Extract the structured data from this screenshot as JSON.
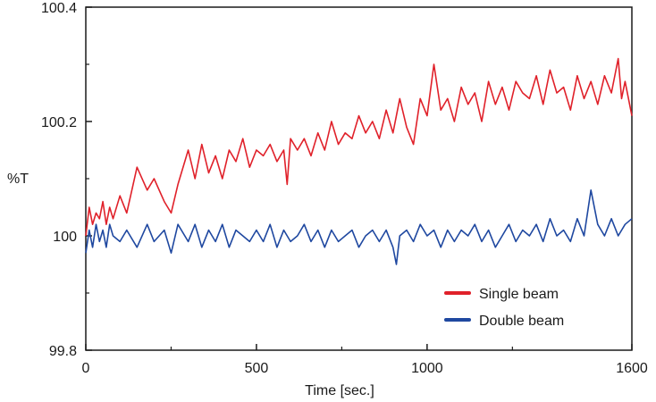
{
  "chart_data": {
    "type": "line",
    "title": "",
    "xlabel": "Time [sec.]",
    "ylabel": "%T",
    "xlim": [
      0,
      1600
    ],
    "ylim": [
      99.8,
      100.4
    ],
    "x_ticks": [
      0,
      500,
      1000,
      1600
    ],
    "x_tick_labels": [
      "0",
      "500",
      "1000",
      "1600"
    ],
    "x_minor_ticks": [
      250,
      750,
      1250
    ],
    "y_ticks": [
      99.8,
      100,
      100.2,
      100.4
    ],
    "y_tick_labels": [
      "99.8",
      "100",
      "100.2",
      "100.4"
    ],
    "y_minor_ticks": [
      99.9,
      100.1,
      100.3
    ],
    "grid": false,
    "legend_position": "bottom-right",
    "series": [
      {
        "name": "Single beam",
        "color": "#e0212a",
        "x": [
          0,
          10,
          20,
          30,
          40,
          50,
          60,
          70,
          80,
          100,
          120,
          150,
          180,
          200,
          230,
          250,
          270,
          300,
          320,
          340,
          360,
          380,
          400,
          420,
          440,
          460,
          480,
          500,
          520,
          540,
          560,
          580,
          590,
          600,
          620,
          640,
          660,
          680,
          700,
          720,
          740,
          760,
          780,
          800,
          820,
          840,
          860,
          880,
          900,
          920,
          940,
          960,
          980,
          1000,
          1020,
          1040,
          1060,
          1080,
          1100,
          1120,
          1140,
          1160,
          1180,
          1200,
          1220,
          1240,
          1260,
          1280,
          1300,
          1320,
          1340,
          1360,
          1380,
          1400,
          1420,
          1440,
          1460,
          1480,
          1500,
          1520,
          1540,
          1560,
          1570,
          1580,
          1600
        ],
        "y": [
          100.0,
          100.05,
          100.02,
          100.04,
          100.03,
          100.06,
          100.02,
          100.05,
          100.03,
          100.07,
          100.04,
          100.12,
          100.08,
          100.1,
          100.06,
          100.04,
          100.09,
          100.15,
          100.1,
          100.16,
          100.11,
          100.14,
          100.1,
          100.15,
          100.13,
          100.17,
          100.12,
          100.15,
          100.14,
          100.16,
          100.13,
          100.15,
          100.09,
          100.17,
          100.15,
          100.17,
          100.14,
          100.18,
          100.15,
          100.2,
          100.16,
          100.18,
          100.17,
          100.21,
          100.18,
          100.2,
          100.17,
          100.22,
          100.18,
          100.24,
          100.19,
          100.16,
          100.24,
          100.21,
          100.3,
          100.22,
          100.24,
          100.2,
          100.26,
          100.23,
          100.25,
          100.2,
          100.27,
          100.23,
          100.26,
          100.22,
          100.27,
          100.25,
          100.24,
          100.28,
          100.23,
          100.29,
          100.25,
          100.26,
          100.22,
          100.28,
          100.24,
          100.27,
          100.23,
          100.28,
          100.25,
          100.31,
          100.24,
          100.27,
          100.21
        ]
      },
      {
        "name": "Double beam",
        "color": "#1f48a0",
        "x": [
          0,
          10,
          20,
          30,
          40,
          50,
          60,
          70,
          80,
          100,
          120,
          150,
          180,
          200,
          230,
          250,
          270,
          300,
          320,
          340,
          360,
          380,
          400,
          420,
          440,
          460,
          480,
          500,
          520,
          540,
          560,
          580,
          600,
          620,
          640,
          660,
          680,
          700,
          720,
          740,
          760,
          780,
          800,
          820,
          840,
          860,
          880,
          900,
          910,
          920,
          940,
          960,
          980,
          1000,
          1020,
          1040,
          1060,
          1080,
          1100,
          1120,
          1140,
          1160,
          1180,
          1200,
          1220,
          1240,
          1260,
          1280,
          1300,
          1320,
          1340,
          1360,
          1380,
          1400,
          1420,
          1440,
          1460,
          1480,
          1500,
          1520,
          1540,
          1560,
          1580,
          1600
        ],
        "y": [
          99.97,
          100.01,
          99.98,
          100.02,
          99.99,
          100.01,
          99.98,
          100.02,
          100.0,
          99.99,
          100.01,
          99.98,
          100.02,
          99.99,
          100.01,
          99.97,
          100.02,
          99.99,
          100.02,
          99.98,
          100.01,
          99.99,
          100.02,
          99.98,
          100.01,
          100.0,
          99.99,
          100.01,
          99.99,
          100.02,
          99.98,
          100.01,
          99.99,
          100.0,
          100.02,
          99.99,
          100.01,
          99.98,
          100.01,
          99.99,
          100.0,
          100.01,
          99.98,
          100.0,
          100.01,
          99.99,
          100.01,
          99.98,
          99.95,
          100.0,
          100.01,
          99.99,
          100.02,
          100.0,
          100.01,
          99.98,
          100.01,
          99.99,
          100.01,
          100.0,
          100.02,
          99.99,
          100.01,
          99.98,
          100.0,
          100.02,
          99.99,
          100.01,
          100.0,
          100.02,
          99.99,
          100.03,
          100.0,
          100.01,
          99.99,
          100.03,
          100.0,
          100.08,
          100.02,
          100.0,
          100.03,
          100.0,
          100.02,
          100.03
        ]
      }
    ]
  }
}
